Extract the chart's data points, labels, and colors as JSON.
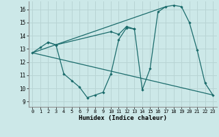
{
  "xlabel": "Humidex (Indice chaleur)",
  "background_color": "#cce8e8",
  "grid_color": "#b8d4d4",
  "line_color": "#1a6b6b",
  "xlim": [
    -0.5,
    23.5
  ],
  "ylim": [
    8.6,
    16.6
  ],
  "xticks": [
    0,
    1,
    2,
    3,
    4,
    5,
    6,
    7,
    8,
    9,
    10,
    11,
    12,
    13,
    14,
    15,
    16,
    17,
    18,
    19,
    20,
    21,
    22,
    23
  ],
  "yticks": [
    9,
    10,
    11,
    12,
    13,
    14,
    15,
    16
  ],
  "lines": [
    {
      "x": [
        0,
        1,
        2,
        3,
        4,
        5,
        6,
        7,
        8,
        9,
        10,
        11,
        12,
        13
      ],
      "y": [
        12.7,
        13.1,
        13.5,
        13.3,
        11.1,
        10.6,
        10.1,
        9.3,
        9.5,
        9.7,
        11.1,
        13.7,
        14.6,
        14.5
      ]
    },
    {
      "x": [
        2,
        3,
        10,
        11,
        12,
        13,
        14,
        15,
        16,
        17,
        18,
        19,
        20,
        21,
        22,
        23
      ],
      "y": [
        13.5,
        13.3,
        14.3,
        14.1,
        14.7,
        14.5,
        9.9,
        11.5,
        15.8,
        16.2,
        16.3,
        16.2,
        15.0,
        12.9,
        10.4,
        9.5
      ]
    },
    {
      "comment": "diagonal line from 0,12.7 to 23,9.5",
      "x": [
        0,
        23
      ],
      "y": [
        12.7,
        9.5
      ]
    },
    {
      "comment": "diagonal line from 0,12.7 to 17,16.2",
      "x": [
        0,
        17
      ],
      "y": [
        12.7,
        16.2
      ]
    }
  ]
}
